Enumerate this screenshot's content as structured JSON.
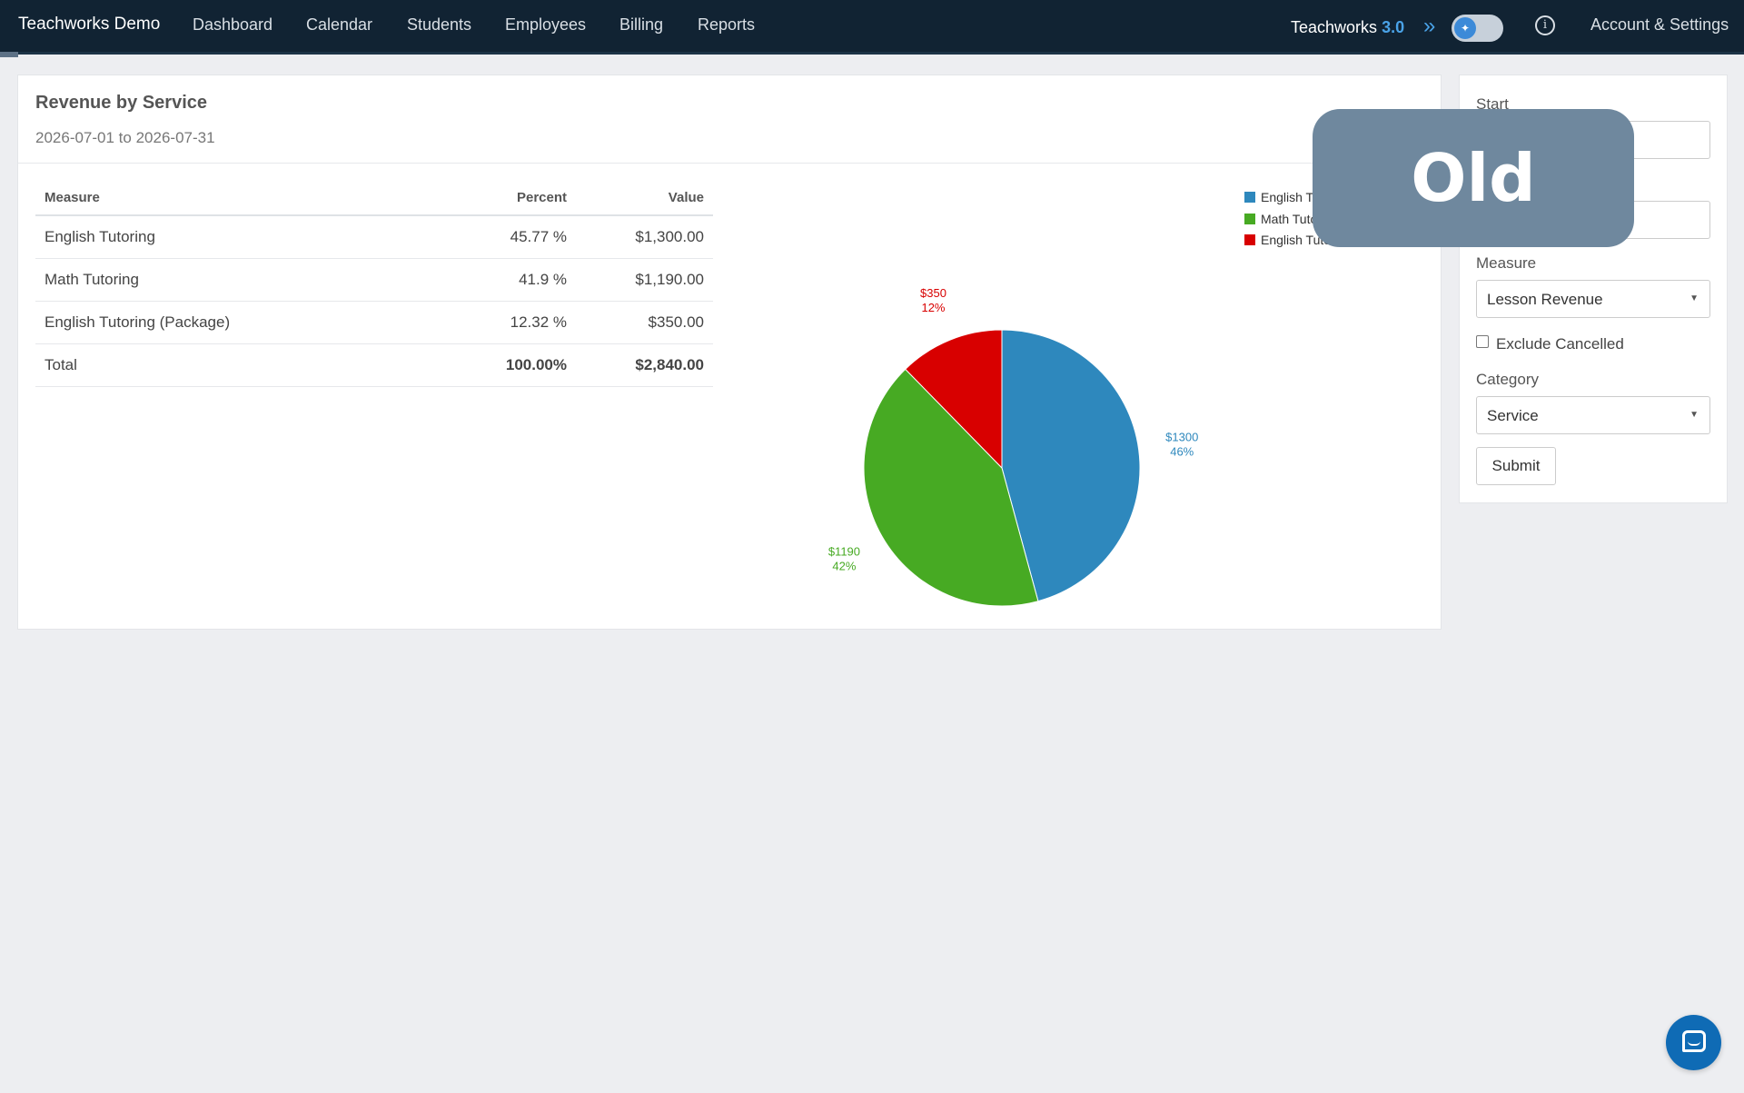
{
  "nav": {
    "brand": "Teachworks Demo",
    "items": [
      "Dashboard",
      "Calendar",
      "Students",
      "Employees",
      "Billing",
      "Reports"
    ],
    "version_label": "Teachworks",
    "version_number": "3.0",
    "account": "Account & Settings",
    "icons": [
      "double-chevron-right-icon",
      "toggle-switch",
      "info-icon"
    ]
  },
  "report": {
    "title": "Revenue by Service",
    "date_range": "2026-07-01 to 2026-07-31",
    "columns": [
      "Measure",
      "Percent",
      "Value"
    ],
    "rows": [
      {
        "measure": "English Tutoring",
        "percent": "45.77 %",
        "value": "$1,300.00"
      },
      {
        "measure": "Math Tutoring",
        "percent": "41.9 %",
        "value": "$1,190.00"
      },
      {
        "measure": "English Tutoring (Package)",
        "percent": "12.32 %",
        "value": "$350.00"
      }
    ],
    "total": {
      "measure": "Total",
      "percent": "100.00%",
      "value": "$2,840.00"
    }
  },
  "chart_data": {
    "type": "pie",
    "categories": [
      "English Tutoring",
      "Math Tutoring",
      "English Tutoring (Package)"
    ],
    "legend_visible": [
      "English Tuto",
      "Math Tutorin",
      "English Tutoring ("
    ],
    "values": [
      1300,
      1190,
      350
    ],
    "value_labels": [
      "$1300",
      "$1190",
      "$350"
    ],
    "percent_labels": [
      "46%",
      "42%",
      "12%"
    ],
    "colors": [
      "#2e88bd",
      "#47aa23",
      "#d80000"
    ],
    "legend_position": "top-right"
  },
  "sidebar": {
    "start_label": "Start",
    "measure_label": "Measure",
    "measure_value": "Lesson Revenue",
    "exclude_label": "Exclude Cancelled",
    "category_label": "Category",
    "category_value": "Service",
    "submit_label": "Submit"
  },
  "overlay": {
    "badge": "Old"
  }
}
